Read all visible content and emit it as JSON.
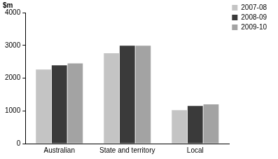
{
  "chart_data": {
    "type": "bar",
    "y_label": "$m",
    "categories": [
      "Australian",
      "State and territory",
      "Local"
    ],
    "series": [
      {
        "name": "2007-08",
        "color": "#c4c4c4",
        "values": [
          2260,
          2760,
          1020
        ]
      },
      {
        "name": "2008-09",
        "color": "#3a3a3a",
        "values": [
          2390,
          2990,
          1150
        ]
      },
      {
        "name": "2009-10",
        "color": "#a3a3a3",
        "values": [
          2450,
          2990,
          1200
        ]
      }
    ],
    "ylim": [
      0,
      4000
    ],
    "yticks": [
      0,
      1000,
      2000,
      3000,
      4000
    ],
    "grid": true,
    "legend": "top-right"
  }
}
